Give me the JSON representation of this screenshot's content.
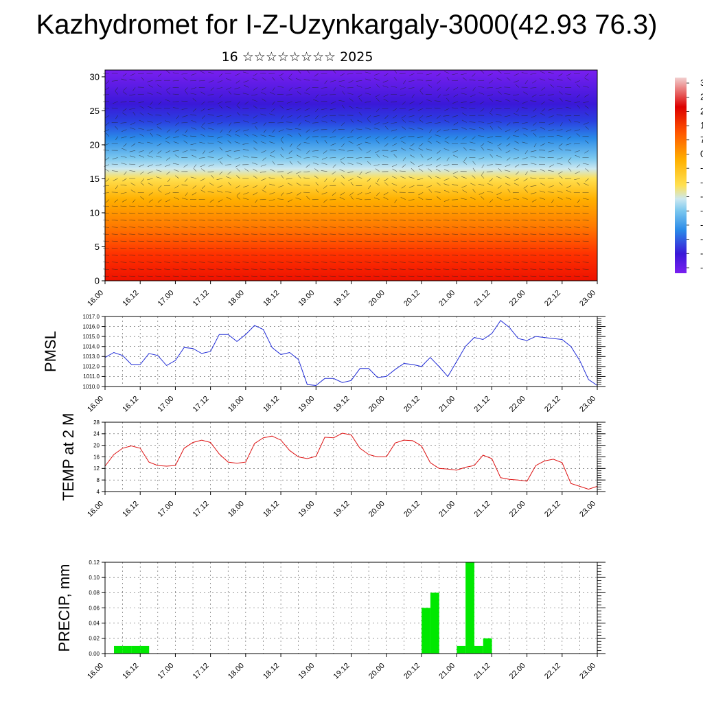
{
  "title": "Kazhydromet for I-Z-Uzynkargaly-3000(42.93 76.3)",
  "subtitle": "16 ☆☆☆☆☆☆☆☆ 2025",
  "time_ticks": [
    "16.00",
    "16.12",
    "17.00",
    "17.12",
    "18.00",
    "18.12",
    "19.00",
    "19.12",
    "20.00",
    "20.12",
    "21.00",
    "21.12",
    "22.00",
    "22.12",
    "23.00"
  ],
  "colors": {
    "pmsl": "#1f2bd6",
    "temp": "#dd1111",
    "precip": "#00e800",
    "hot": "#ee1100",
    "cold": "#7a1ff0"
  },
  "chart_data": [
    {
      "type": "heatmap",
      "id": "cross-section",
      "y_ticks": [
        "0",
        "5",
        "10",
        "15",
        "20",
        "25",
        "30"
      ],
      "ylim": [
        0,
        31
      ],
      "colorbar_labels": [
        "3",
        "2",
        "2",
        "1",
        "7",
        "0",
        "-",
        "-",
        "-",
        "-",
        "-",
        "-",
        "-",
        "-"
      ],
      "description_levels": [
        {
          "y": 0,
          "color": "#ee1100"
        },
        {
          "y": 4,
          "color": "#ff3300"
        },
        {
          "y": 8,
          "color": "#ff7a00"
        },
        {
          "y": 12,
          "color": "#ffb000"
        },
        {
          "y": 15,
          "color": "#ffe050"
        },
        {
          "y": 16.5,
          "color": "#cce8f0"
        },
        {
          "y": 18,
          "color": "#7cc8ef"
        },
        {
          "y": 21,
          "color": "#2a8ae8"
        },
        {
          "y": 23.5,
          "color": "#2a3fe0"
        },
        {
          "y": 26,
          "color": "#3a18d8"
        },
        {
          "y": 31,
          "color": "#7a1ff0"
        }
      ]
    },
    {
      "type": "line",
      "id": "pmsl",
      "ylabel": "PMSL",
      "ylim": [
        1010,
        1017
      ],
      "y_ticks": [
        "1010.0",
        "1011.0",
        "1012.0",
        "1013.0",
        "1014.0",
        "1015.0",
        "1016.0",
        "1017.0"
      ],
      "x": [
        0,
        3,
        6,
        9,
        12,
        15,
        18,
        21,
        24,
        27,
        30,
        33,
        36,
        39,
        42,
        45,
        48,
        51,
        54,
        57,
        60,
        63,
        66,
        69,
        72,
        75,
        78,
        81,
        84,
        87,
        90,
        93,
        96,
        99,
        102,
        105,
        108,
        111,
        114,
        117,
        120,
        123,
        126,
        129,
        132,
        135,
        138,
        141,
        144,
        147,
        150,
        153,
        156,
        159,
        162,
        165,
        168
      ],
      "values": [
        1012.9,
        1013.4,
        1013.1,
        1012.2,
        1012.2,
        1013.3,
        1013.1,
        1012.1,
        1012.6,
        1013.9,
        1013.8,
        1013.3,
        1013.5,
        1015.2,
        1015.2,
        1014.5,
        1015.2,
        1016.1,
        1015.7,
        1013.9,
        1013.2,
        1013.4,
        1012.7,
        1010.2,
        1010.1,
        1010.8,
        1010.8,
        1010.4,
        1010.6,
        1011.8,
        1011.8,
        1010.9,
        1011.0,
        1011.7,
        1012.3,
        1012.2,
        1012.0,
        1012.9,
        1012.0,
        1011.0,
        1012.5,
        1014.0,
        1014.9,
        1014.7,
        1015.3,
        1016.6,
        1015.9,
        1014.8,
        1014.6,
        1015.0,
        1014.9,
        1014.8,
        1014.7,
        1014.0,
        1012.6,
        1010.7,
        1010.1
      ]
    },
    {
      "type": "line",
      "id": "temp",
      "ylabel": "TEMP at 2 M",
      "ylim": [
        4,
        28
      ],
      "y_ticks": [
        "4",
        "8",
        "12",
        "16",
        "20",
        "24",
        "28"
      ],
      "x": [
        0,
        3,
        6,
        9,
        12,
        15,
        18,
        21,
        24,
        27,
        30,
        33,
        36,
        39,
        42,
        45,
        48,
        51,
        54,
        57,
        60,
        63,
        66,
        69,
        72,
        75,
        78,
        81,
        84,
        87,
        90,
        93,
        96,
        99,
        102,
        105,
        108,
        111,
        114,
        117,
        120,
        123,
        126,
        129,
        132,
        135,
        138,
        141,
        144,
        147,
        150,
        153,
        156,
        159,
        162,
        165,
        168
      ],
      "values": [
        12.8,
        16.8,
        19.0,
        19.8,
        19.0,
        14.2,
        13.0,
        12.8,
        13.0,
        19.0,
        21.0,
        21.8,
        21.0,
        17.0,
        14.2,
        13.8,
        14.2,
        20.6,
        22.6,
        23.2,
        21.8,
        18.2,
        16.0,
        15.4,
        16.2,
        22.8,
        22.6,
        24.2,
        23.6,
        19.0,
        16.8,
        16.0,
        16.0,
        20.8,
        21.8,
        21.6,
        19.8,
        14.0,
        12.0,
        11.8,
        11.4,
        12.4,
        13.0,
        16.6,
        15.4,
        8.8,
        8.2,
        8.0,
        7.6,
        13.0,
        14.6,
        15.2,
        14.0,
        6.8,
        5.8,
        4.8,
        5.8
      ]
    },
    {
      "type": "bar",
      "id": "precip",
      "ylabel": "PRECIP, mm",
      "ylim": [
        0,
        0.12
      ],
      "y_ticks": [
        "0.00",
        "0.02",
        "0.04",
        "0.06",
        "0.08",
        "0.10",
        "0.12"
      ],
      "x": [
        0,
        3,
        6,
        9,
        105,
        108,
        117,
        120,
        123,
        126
      ],
      "values": [
        0.01,
        0.01,
        0.01,
        0.01,
        0.06,
        0.08,
        0.01,
        0.12,
        0.01,
        0.02
      ]
    }
  ]
}
